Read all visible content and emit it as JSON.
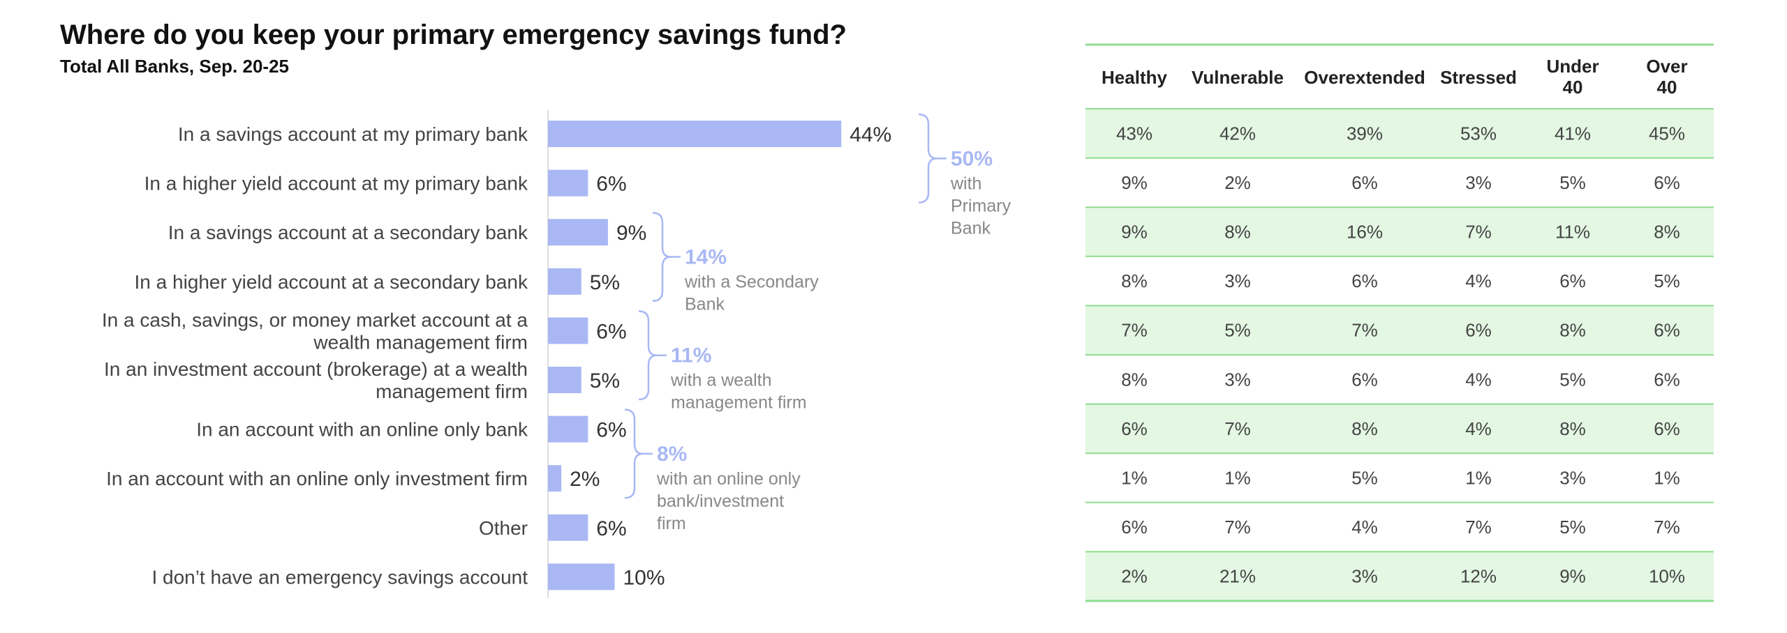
{
  "title": "Where do you keep your primary emergency savings fund?",
  "subtitle": "Total All Banks, Sep. 20-25",
  "colors": {
    "bar": "#a9b8f4",
    "bracket": "#a9b8f4",
    "group_pct": "#a9b8f4",
    "group_text": "#888888",
    "row_band": "#e3f7e3",
    "row_rule": "#8fdc8f"
  },
  "chart_data": {
    "type": "bar",
    "orientation": "horizontal",
    "categories": [
      [
        "In a savings account at my primary bank"
      ],
      [
        "In a higher yield account at my primary bank"
      ],
      [
        "In a savings account at a secondary bank"
      ],
      [
        "In a higher yield account at a secondary bank"
      ],
      [
        "In a cash, savings, or money market account at a",
        "wealth management firm"
      ],
      [
        "In an investment account (brokerage) at a wealth",
        "management firm"
      ],
      [
        "In an account with an online only bank"
      ],
      [
        "In an account with an online only investment firm"
      ],
      [
        "Other"
      ],
      [
        "I don’t have an emergency savings account"
      ]
    ],
    "values": [
      44,
      6,
      9,
      5,
      6,
      5,
      6,
      2,
      6,
      10
    ],
    "value_labels": [
      "44%",
      "6%",
      "9%",
      "5%",
      "6%",
      "5%",
      "6%",
      "2%",
      "6%",
      "10%"
    ],
    "unit": "%",
    "groups": [
      {
        "rows": [
          0,
          1
        ],
        "pct": "50%",
        "text": [
          "with",
          "Primary",
          "Bank"
        ]
      },
      {
        "rows": [
          2,
          3
        ],
        "pct": "14%",
        "text": [
          "with a Secondary",
          "Bank"
        ]
      },
      {
        "rows": [
          4,
          5
        ],
        "pct": "11%",
        "text": [
          "with a wealth",
          "management firm"
        ]
      },
      {
        "rows": [
          6,
          7
        ],
        "pct": "8%",
        "text": [
          "with an online only",
          "bank/investment",
          "firm"
        ]
      }
    ]
  },
  "table": {
    "headers": [
      [
        "Healthy"
      ],
      [
        "Vulnerable"
      ],
      [
        "Overextended"
      ],
      [
        "Stressed"
      ],
      [
        "Under",
        "40"
      ],
      [
        "Over",
        "40"
      ]
    ],
    "rows": [
      [
        "43%",
        "42%",
        "39%",
        "53%",
        "41%",
        "45%"
      ],
      [
        "9%",
        "2%",
        "6%",
        "3%",
        "5%",
        "6%"
      ],
      [
        "9%",
        "8%",
        "16%",
        "7%",
        "11%",
        "8%"
      ],
      [
        "8%",
        "3%",
        "6%",
        "4%",
        "6%",
        "5%"
      ],
      [
        "7%",
        "5%",
        "7%",
        "6%",
        "8%",
        "6%"
      ],
      [
        "8%",
        "3%",
        "6%",
        "4%",
        "5%",
        "6%"
      ],
      [
        "6%",
        "7%",
        "8%",
        "4%",
        "8%",
        "6%"
      ],
      [
        "1%",
        "1%",
        "5%",
        "1%",
        "3%",
        "1%"
      ],
      [
        "6%",
        "7%",
        "4%",
        "7%",
        "5%",
        "7%"
      ],
      [
        "2%",
        "21%",
        "3%",
        "12%",
        "9%",
        "10%"
      ]
    ],
    "shaded_rows": [
      0,
      2,
      4,
      6,
      9
    ]
  }
}
